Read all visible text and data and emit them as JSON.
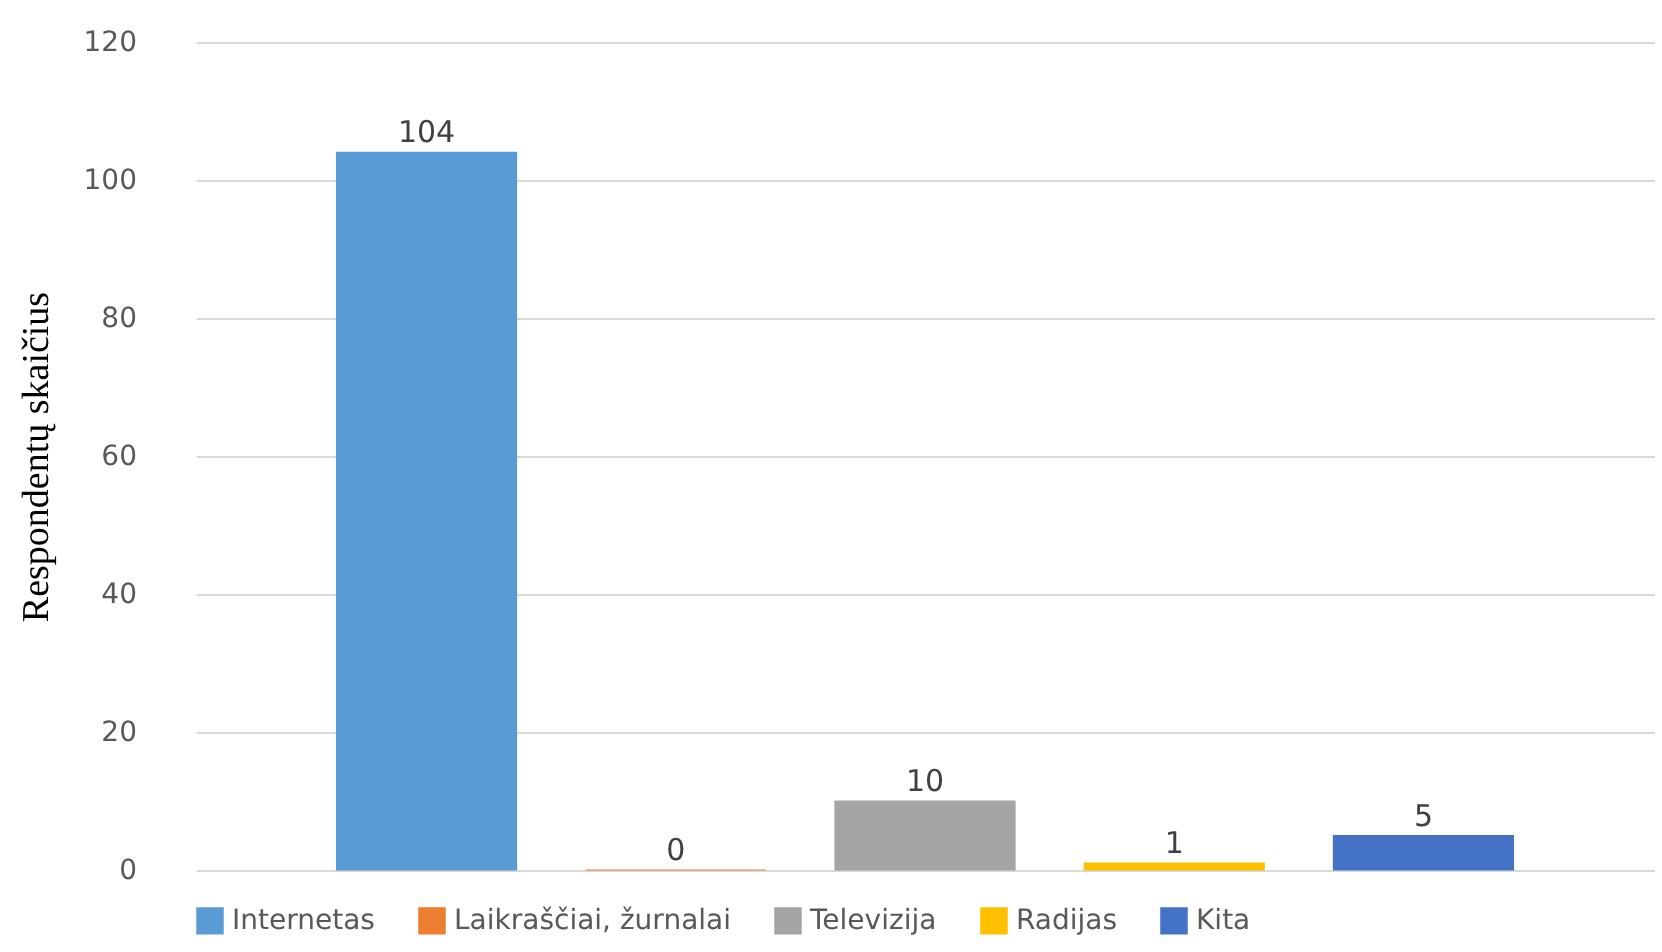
{
  "chart_data": {
    "type": "bar",
    "ylabel": "Respondentų skaičius",
    "categories": [
      null
    ],
    "series": [
      {
        "name": "Internetas",
        "color": "#5b9bd5",
        "values": [
          104
        ]
      },
      {
        "name": "Laikraščiai, žurnalai",
        "color": "#ed7d31",
        "values": [
          0
        ]
      },
      {
        "name": "Televizija",
        "color": "#a5a5a5",
        "values": [
          10
        ]
      },
      {
        "name": "Radijas",
        "color": "#ffc000",
        "values": [
          1
        ]
      },
      {
        "name": "Kita",
        "color": "#4472c4",
        "values": [
          5
        ]
      }
    ],
    "ylim": [
      0,
      120
    ],
    "yticks": [
      0,
      20,
      40,
      60,
      80,
      100,
      120
    ],
    "grid": "y",
    "legend": "bottom",
    "data_labels": true
  }
}
